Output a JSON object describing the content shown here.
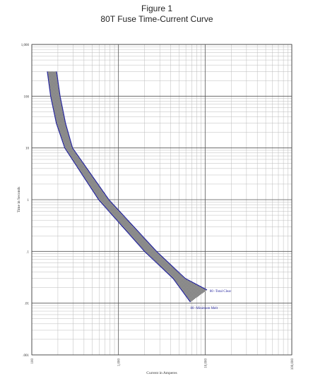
{
  "chart_data": {
    "type": "line",
    "title": "Figure 1",
    "subtitle": "80T Fuse Time-Current Curve",
    "x_label": "Current in Amperes",
    "y_label": "Time in Seconds",
    "xscale": "log",
    "yscale": "log",
    "grid": true,
    "xlim": [
      100,
      100000
    ],
    "ylim": [
      0.001,
      1000
    ],
    "xticks": [
      100,
      {
        "value": 1000,
        "label": "1,000"
      },
      {
        "value": 10000,
        "label": "10,000"
      },
      {
        "value": 100000,
        "label": "100,000"
      }
    ],
    "yticks": [
      {
        "value": 1000,
        "label": "1,000"
      },
      100,
      10,
      1,
      {
        "value": 0.1,
        "label": ".1"
      },
      {
        "value": 0.01,
        "label": ".01"
      },
      {
        "value": 0.001,
        "label": ".001"
      }
    ],
    "series": [
      {
        "name": "80 -Total Clear",
        "color": "#2a2aa0",
        "x": [
          193,
          212,
          245,
          295,
          775,
          2750,
          5900,
          10500
        ],
        "values": [
          300,
          100,
          30,
          10,
          1,
          0.1,
          0.03,
          0.018
        ]
      },
      {
        "name": "80 -Minimum Melt",
        "color": "#2a2aa0",
        "x": [
          151,
          165,
          192,
          240,
          590,
          2000,
          4270,
          6760
        ],
        "values": [
          300,
          100,
          30,
          10,
          1,
          0.1,
          0.03,
          0.0105
        ]
      }
    ]
  }
}
